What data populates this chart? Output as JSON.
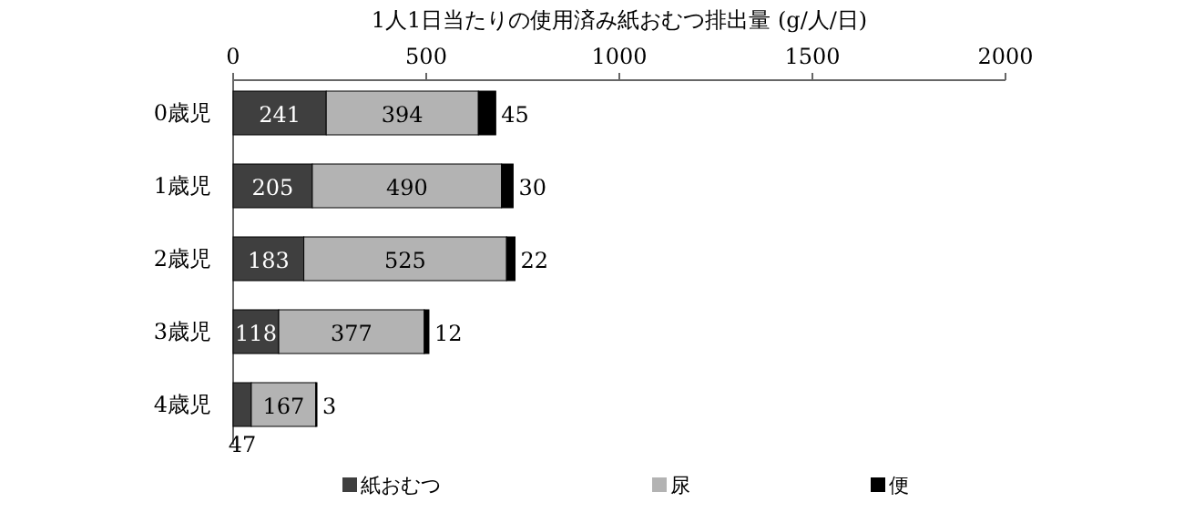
{
  "chart_data": {
    "type": "bar",
    "orientation": "horizontal",
    "stacked": true,
    "title": "1人1日当たりの使用済み紙おむつ排出量 (g/人/日)",
    "categories": [
      "0歳児",
      "1歳児",
      "2歳児",
      "3歳児",
      "4歳児"
    ],
    "series": [
      {
        "name": "紙おむつ",
        "color": "#3f3f3f",
        "values": [
          241,
          205,
          183,
          118,
          47
        ]
      },
      {
        "name": "尿",
        "color": "#b3b3b3",
        "values": [
          394,
          490,
          525,
          377,
          167
        ]
      },
      {
        "name": "便",
        "color": "#000000",
        "values": [
          45,
          30,
          22,
          12,
          3
        ]
      }
    ],
    "xlim": [
      0,
      2000
    ],
    "xticks": [
      0,
      500,
      1000,
      1500,
      2000
    ],
    "data_labels": true,
    "legend": "bottom",
    "grid": false
  }
}
